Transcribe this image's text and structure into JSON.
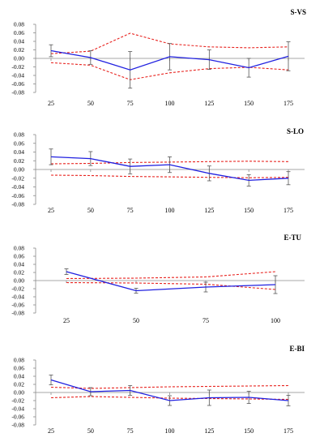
{
  "colors": {
    "series": "#2020e0",
    "band": "#e8231f",
    "axis": "#8a8a8a",
    "error": "#555555"
  },
  "chart_data": [
    {
      "type": "line",
      "title": "S-VS",
      "x": [
        "25",
        "50",
        "75",
        "100",
        "125",
        "150",
        "175"
      ],
      "ylim": [
        -0.08,
        0.08
      ],
      "yticks": [
        "0.08",
        "0.06",
        "0.04",
        "0.02",
        "0.00",
        "-0.02",
        "-0.04",
        "-0.06",
        "-0.08"
      ],
      "series": [
        {
          "values": [
            0.018,
            0.002,
            -0.027,
            0.004,
            -0.003,
            -0.022,
            0.005
          ],
          "error": [
            0.014,
            0.016,
            0.043,
            0.031,
            0.023,
            0.022,
            0.034
          ]
        }
      ],
      "bands": [
        {
          "values": [
            0.011,
            0.017,
            0.059,
            0.034,
            0.027,
            0.025,
            0.027
          ]
        },
        {
          "values": [
            -0.01,
            -0.016,
            -0.05,
            -0.034,
            -0.024,
            -0.021,
            -0.027
          ]
        }
      ]
    },
    {
      "type": "line",
      "title": "S-LO",
      "x": [
        "25",
        "50",
        "75",
        "100",
        "125",
        "150",
        "175"
      ],
      "ylim": [
        -0.08,
        0.08
      ],
      "yticks": [
        "0.08",
        "0.06",
        "0.04",
        "0.02",
        "0.00",
        "-0.02",
        "-0.04",
        "-0.06",
        "-0.08"
      ],
      "series": [
        {
          "values": [
            0.029,
            0.025,
            0.007,
            0.011,
            -0.009,
            -0.025,
            -0.02
          ],
          "error": [
            0.018,
            0.016,
            0.017,
            0.018,
            0.017,
            0.013,
            0.015
          ]
        }
      ],
      "bands": [
        {
          "values": [
            0.013,
            0.014,
            0.016,
            0.017,
            0.018,
            0.019,
            0.018
          ]
        },
        {
          "values": [
            -0.013,
            -0.014,
            -0.016,
            -0.017,
            -0.018,
            -0.019,
            -0.018
          ]
        }
      ]
    },
    {
      "type": "line",
      "title": "E-TU",
      "x": [
        "25",
        "50",
        "75",
        "100"
      ],
      "ylim": [
        -0.08,
        0.08
      ],
      "yticks": [
        "0.08",
        "0.06",
        "0.04",
        "0.02",
        "0.00",
        "-0.02",
        "-0.04",
        "-0.06",
        "-0.08"
      ],
      "series": [
        {
          "values": [
            0.022,
            -0.025,
            -0.016,
            -0.01
          ],
          "error": [
            0.007,
            0.006,
            0.012,
            0.022
          ]
        }
      ],
      "bands": [
        {
          "values": [
            0.005,
            0.006,
            0.009,
            0.022
          ]
        },
        {
          "values": [
            -0.005,
            -0.006,
            -0.009,
            -0.022
          ]
        }
      ]
    },
    {
      "type": "line",
      "title": "E-BI",
      "x": [
        "25",
        "50",
        "75",
        "100",
        "125",
        "150",
        "175"
      ],
      "ylim": [
        -0.08,
        0.08
      ],
      "yticks": [
        "0.08",
        "0.06",
        "0.04",
        "0.02",
        "0.00",
        "-0.02",
        "-0.04",
        "-0.06",
        "-0.08"
      ],
      "series": [
        {
          "values": [
            0.031,
            0.002,
            0.005,
            -0.02,
            -0.013,
            -0.012,
            -0.02
          ],
          "error": [
            0.012,
            0.01,
            0.012,
            0.012,
            0.019,
            0.015,
            0.013
          ]
        }
      ],
      "bands": [
        {
          "values": [
            0.013,
            0.01,
            0.012,
            0.014,
            0.015,
            0.016,
            0.017
          ]
        },
        {
          "values": [
            -0.013,
            -0.01,
            -0.012,
            -0.014,
            -0.015,
            -0.016,
            -0.017
          ]
        }
      ]
    }
  ]
}
